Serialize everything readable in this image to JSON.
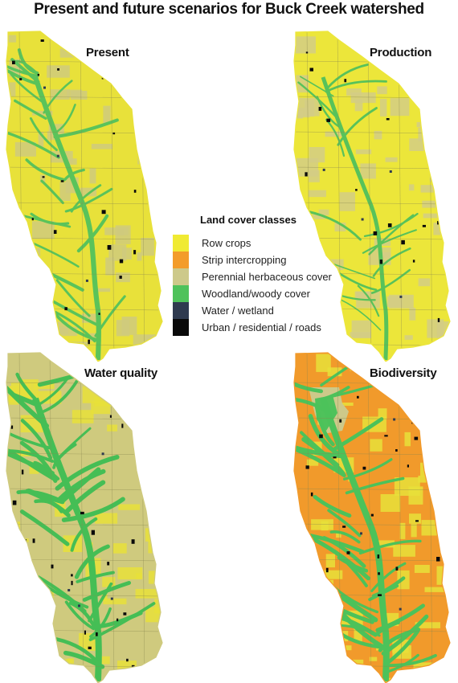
{
  "title": "Present and future scenarios for Buck Creek watershed",
  "panels": [
    {
      "label": "Present",
      "base": "#e8e13a",
      "fields": "#cfca7e",
      "streams": "#5ac35a",
      "stream_density": 0.55
    },
    {
      "label": "Production",
      "base": "#ece63a",
      "fields": "#d3cd86",
      "streams": "#58c25a",
      "stream_density": 0.25
    },
    {
      "label": "Water quality",
      "base": "#cfca7e",
      "fields": "#e8e13a",
      "streams": "#45be55",
      "stream_density": 1.0
    },
    {
      "label": "Biodiversity",
      "base": "#f19a2b",
      "fields": "#e8e13a",
      "streams": "#4cc25a",
      "stream_density": 1.0
    }
  ],
  "legend": {
    "title": "Land cover classes",
    "items": [
      {
        "label": "Row crops",
        "color": "#f0ea33"
      },
      {
        "label": "Strip intercropping",
        "color": "#f39c2a"
      },
      {
        "label": "Perennial herbaceous cover",
        "color": "#cdc98a"
      },
      {
        "label": "Woodland/woody cover",
        "color": "#4fc25b"
      },
      {
        "label": "Water / wetland",
        "color": "#2f3a4f"
      },
      {
        "label": "Urban / residential / roads",
        "color": "#0a0a0a"
      }
    ]
  }
}
